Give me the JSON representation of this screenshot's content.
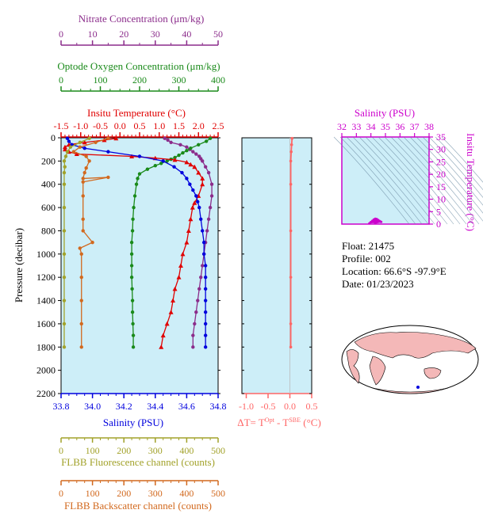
{
  "colors": {
    "nitrate": "#8b2c8b",
    "oxygen": "#1a8a1a",
    "temperature": "#e00000",
    "salinity": "#0000dd",
    "fluorescence": "#a2a22a",
    "backscatter": "#d2691e",
    "plot_bg": "#cdeef8",
    "delta_t": "#ff6666",
    "ts_axis": "#cc00cc"
  },
  "axes": {
    "nitrate": {
      "label": "Nitrate Concentration (μm/kg)",
      "ticks": [
        "0",
        "10",
        "20",
        "30",
        "40",
        "50"
      ]
    },
    "oxygen": {
      "label": "Optode Oxygen Concentration (μm/kg)",
      "ticks": [
        "0",
        "100",
        "200",
        "300",
        "400"
      ]
    },
    "temperature": {
      "label": "Insitu Temperature (°C)",
      "ticks": [
        "-1.5",
        "-1.0",
        "-0.5",
        "0.0",
        "0.5",
        "1.0",
        "1.5",
        "2.0",
        "2.5"
      ]
    },
    "pressure": {
      "label": "Pressure (decibar)",
      "ticks": [
        "0",
        "200",
        "400",
        "600",
        "800",
        "1000",
        "1200",
        "1400",
        "1600",
        "1800",
        "2000",
        "2200"
      ]
    },
    "salinity": {
      "label": "Salinity (PSU)",
      "ticks": [
        "33.8",
        "34.0",
        "34.2",
        "34.4",
        "34.6",
        "34.8"
      ]
    },
    "fluorescence": {
      "label": "FLBB Fluorescence channel (counts)",
      "ticks": [
        "0",
        "100",
        "200",
        "300",
        "400",
        "500"
      ]
    },
    "backscatter": {
      "label": "FLBB Backscatter channel (counts)",
      "ticks": [
        "0",
        "100",
        "200",
        "300",
        "400",
        "500"
      ]
    },
    "delta_t": {
      "label_main": "ΔT= T",
      "label_sup1": "Opt",
      "label_mid": " - T",
      "label_sup2": "SBE",
      "label_end": " (°C)",
      "ticks": [
        "-1.0",
        "-0.5",
        "0.0",
        "0.5"
      ]
    },
    "ts_salinity": {
      "label": "Salinity (PSU)",
      "ticks": [
        "32",
        "33",
        "34",
        "35",
        "36",
        "37",
        "38"
      ]
    },
    "ts_temperature": {
      "label": "Insitu Temperature (°C)",
      "ticks": [
        "0",
        "5",
        "10",
        "15",
        "20",
        "25",
        "30",
        "35"
      ]
    }
  },
  "info": {
    "float": "Float:  21475",
    "profile": "Profile:  002",
    "location": "Location:  66.6°S  -97.9°E",
    "date": "Date:  01/23/2023"
  },
  "chart_data": [
    {
      "type": "line",
      "title": "",
      "ylabel": "Pressure (decibar)",
      "ylim": [
        2200,
        0
      ],
      "series": [
        {
          "name": "Nitrate Concentration (μm/kg)",
          "xlim": [
            0,
            50
          ],
          "color": "nitrate",
          "points": [
            [
              33,
              5
            ],
            [
              34,
              20
            ],
            [
              35,
              40
            ],
            [
              38,
              60
            ],
            [
              40,
              80
            ],
            [
              41,
              100
            ],
            [
              42,
              120
            ],
            [
              43,
              140
            ],
            [
              44,
              160
            ],
            [
              44.5,
              180
            ],
            [
              45,
              200
            ],
            [
              46,
              250
            ],
            [
              47,
              300
            ],
            [
              48,
              400
            ],
            [
              48,
              500
            ],
            [
              47.5,
              600
            ],
            [
              47,
              700
            ],
            [
              46.5,
              800
            ],
            [
              46,
              900
            ],
            [
              45.5,
              1000
            ],
            [
              45,
              1100
            ],
            [
              44.5,
              1200
            ],
            [
              44,
              1300
            ],
            [
              43.5,
              1400
            ],
            [
              43,
              1500
            ],
            [
              42.5,
              1600
            ],
            [
              42,
              1700
            ],
            [
              42,
              1800
            ]
          ]
        },
        {
          "name": "Optode Oxygen Concentration (μm/kg)",
          "xlim": [
            0,
            400
          ],
          "color": "oxygen",
          "points": [
            [
              380,
              5
            ],
            [
              370,
              30
            ],
            [
              350,
              60
            ],
            [
              330,
              90
            ],
            [
              320,
              110
            ],
            [
              310,
              130
            ],
            [
              300,
              150
            ],
            [
              290,
              170
            ],
            [
              280,
              185
            ],
            [
              270,
              200
            ],
            [
              255,
              220
            ],
            [
              240,
              240
            ],
            [
              220,
              270
            ],
            [
              200,
              310
            ],
            [
              195,
              350
            ],
            [
              192,
              400
            ],
            [
              188,
              500
            ],
            [
              185,
              600
            ],
            [
              183,
              700
            ],
            [
              182,
              800
            ],
            [
              180,
              900
            ],
            [
              180,
              1000
            ],
            [
              180,
              1100
            ],
            [
              180,
              1200
            ],
            [
              181,
              1300
            ],
            [
              182,
              1400
            ],
            [
              182,
              1500
            ],
            [
              183,
              1600
            ],
            [
              184,
              1700
            ],
            [
              184,
              1800
            ]
          ]
        },
        {
          "name": "Insitu Temperature (°C)",
          "xlim": [
            -1.5,
            2.5
          ],
          "color": "temperature",
          "points": [
            [
              -0.1,
              5
            ],
            [
              -0.4,
              20
            ],
            [
              -0.9,
              40
            ],
            [
              -1.3,
              60
            ],
            [
              -1.4,
              80
            ],
            [
              -1.4,
              100
            ],
            [
              -1.3,
              120
            ],
            [
              -1.1,
              140
            ],
            [
              0.3,
              160
            ],
            [
              0.9,
              175
            ],
            [
              1.4,
              190
            ],
            [
              1.7,
              210
            ],
            [
              1.8,
              230
            ],
            [
              1.9,
              250
            ],
            [
              2.0,
              300
            ],
            [
              2.1,
              350
            ],
            [
              2.1,
              400
            ],
            [
              2.0,
              500
            ],
            [
              1.9,
              560
            ],
            [
              1.85,
              600
            ],
            [
              1.8,
              700
            ],
            [
              1.75,
              800
            ],
            [
              1.7,
              900
            ],
            [
              1.6,
              1000
            ],
            [
              1.55,
              1100
            ],
            [
              1.5,
              1200
            ],
            [
              1.4,
              1300
            ],
            [
              1.35,
              1400
            ],
            [
              1.3,
              1500
            ],
            [
              1.2,
              1600
            ],
            [
              1.1,
              1700
            ],
            [
              1.05,
              1800
            ]
          ]
        },
        {
          "name": "Salinity (PSU)",
          "xlim": [
            33.8,
            34.8
          ],
          "color": "salinity",
          "points": [
            [
              33.84,
              5
            ],
            [
              33.85,
              30
            ],
            [
              33.87,
              60
            ],
            [
              33.95,
              90
            ],
            [
              34.1,
              120
            ],
            [
              34.3,
              160
            ],
            [
              34.45,
              200
            ],
            [
              34.52,
              250
            ],
            [
              34.57,
              300
            ],
            [
              34.6,
              350
            ],
            [
              34.62,
              400
            ],
            [
              34.64,
              450
            ],
            [
              34.66,
              500
            ],
            [
              34.67,
              550
            ],
            [
              34.68,
              600
            ],
            [
              34.69,
              700
            ],
            [
              34.7,
              800
            ],
            [
              34.71,
              900
            ],
            [
              34.71,
              1000
            ],
            [
              34.72,
              1100
            ],
            [
              34.72,
              1200
            ],
            [
              34.72,
              1300
            ],
            [
              34.72,
              1400
            ],
            [
              34.72,
              1500
            ],
            [
              34.72,
              1600
            ],
            [
              34.72,
              1700
            ],
            [
              34.72,
              1800
            ]
          ]
        },
        {
          "name": "FLBB Fluorescence channel (counts)",
          "xlim": [
            0,
            500
          ],
          "color": "fluorescence",
          "points": [
            [
              90,
              5
            ],
            [
              60,
              40
            ],
            [
              30,
              80
            ],
            [
              20,
              120
            ],
            [
              15,
              160
            ],
            [
              10,
              200
            ],
            [
              12,
              250
            ],
            [
              10,
              300
            ],
            [
              10,
              400
            ],
            [
              10,
              600
            ],
            [
              10,
              800
            ],
            [
              10,
              1000
            ],
            [
              10,
              1200
            ],
            [
              10,
              1400
            ],
            [
              10,
              1600
            ],
            [
              10,
              1800
            ]
          ]
        },
        {
          "name": "FLBB Backscatter channel (counts)",
          "xlim": [
            0,
            500
          ],
          "color": "backscatter",
          "points": [
            [
              150,
              5
            ],
            [
              110,
              40
            ],
            [
              60,
              80
            ],
            [
              40,
              120
            ],
            [
              80,
              160
            ],
            [
              90,
              200
            ],
            [
              80,
              260
            ],
            [
              75,
              300
            ],
            [
              70,
              350
            ],
            [
              150,
              340
            ],
            [
              70,
              380
            ],
            [
              70,
              500
            ],
            [
              70,
              700
            ],
            [
              70,
              800
            ],
            [
              100,
              900
            ],
            [
              60,
              950
            ],
            [
              65,
              1000
            ],
            [
              65,
              1200
            ],
            [
              65,
              1400
            ],
            [
              65,
              1600
            ],
            [
              65,
              1800
            ]
          ]
        }
      ]
    },
    {
      "type": "line",
      "xlabel": "ΔT= T Opt - T SBE (°C)",
      "xlim": [
        -1.1,
        0.5
      ],
      "ylim": [
        2200,
        0
      ],
      "series": [
        {
          "points": [
            [
              0.05,
              5
            ],
            [
              0.04,
              60
            ],
            [
              0.03,
              120
            ],
            [
              0.02,
              200
            ],
            [
              0.02,
              400
            ],
            [
              0.02,
              800
            ],
            [
              0.02,
              1200
            ],
            [
              0.02,
              1600
            ],
            [
              0.02,
              1800
            ]
          ]
        }
      ]
    },
    {
      "type": "scatter",
      "xlabel": "Salinity (PSU)",
      "ylabel": "Insitu Temperature (°C)",
      "xlim": [
        32,
        38
      ],
      "ylim": [
        0,
        35
      ],
      "series": [
        {
          "points": [
            [
              33.9,
              0.3
            ],
            [
              34.0,
              0.8
            ],
            [
              34.1,
              1.3
            ],
            [
              34.2,
              1.8
            ],
            [
              34.3,
              2.1
            ],
            [
              34.4,
              2.0
            ],
            [
              34.5,
              1.6
            ],
            [
              34.6,
              1.2
            ],
            [
              34.7,
              0.9
            ],
            [
              34.3,
              0.4
            ]
          ]
        }
      ]
    }
  ]
}
